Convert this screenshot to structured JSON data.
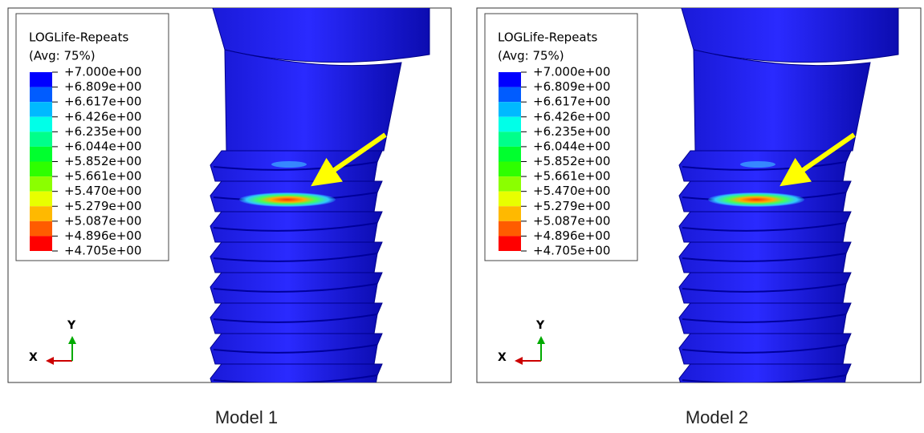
{
  "panels": [
    {
      "legend": {
        "title": "LOGLife-Repeats",
        "subtitle": "(Avg: 75%)",
        "labels": [
          "+7.000e+00",
          "+6.809e+00",
          "+6.617e+00",
          "+6.426e+00",
          "+6.235e+00",
          "+6.044e+00",
          "+5.852e+00",
          "+5.661e+00",
          "+5.470e+00",
          "+5.279e+00",
          "+5.087e+00",
          "+4.896e+00",
          "+4.705e+00"
        ],
        "colors": [
          "#0000ff",
          "#005cff",
          "#00b9ff",
          "#00ffe8",
          "#00ff8b",
          "#00ff2e",
          "#2eff00",
          "#8bff00",
          "#e8ff00",
          "#ffb900",
          "#ff5c00",
          "#ff0000"
        ]
      },
      "axes": {
        "x": "X",
        "y": "Y"
      },
      "caption": "Model 1"
    },
    {
      "legend": {
        "title": "LOGLife-Repeats",
        "subtitle": "(Avg: 75%)",
        "labels": [
          "+7.000e+00",
          "+6.809e+00",
          "+6.617e+00",
          "+6.426e+00",
          "+6.235e+00",
          "+6.044e+00",
          "+5.852e+00",
          "+5.661e+00",
          "+5.470e+00",
          "+5.279e+00",
          "+5.087e+00",
          "+4.896e+00",
          "+4.705e+00"
        ],
        "colors": [
          "#0000ff",
          "#005cff",
          "#00b9ff",
          "#00ffe8",
          "#00ff8b",
          "#00ff2e",
          "#2eff00",
          "#8bff00",
          "#e8ff00",
          "#ffb900",
          "#ff5c00",
          "#ff0000"
        ]
      },
      "axes": {
        "x": "X",
        "y": "Y"
      },
      "caption": "Model 2"
    }
  ]
}
